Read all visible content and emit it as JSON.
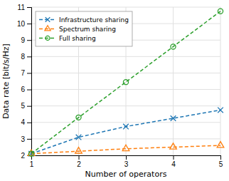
{
  "chart_data": {
    "type": "line",
    "x": [
      1,
      2,
      3,
      4,
      5
    ],
    "series": [
      {
        "name": "Infrastructure sharing",
        "values": [
          2.1,
          3.1,
          3.75,
          4.25,
          4.75
        ],
        "marker": "x",
        "line_style": "dashed"
      },
      {
        "name": "Spectrum sharing",
        "values": [
          2.1,
          2.25,
          2.4,
          2.5,
          2.6
        ],
        "marker": "triangle",
        "line_style": "dashed"
      },
      {
        "name": "Full sharing",
        "values": [
          2.1,
          4.3,
          6.45,
          8.6,
          10.75
        ],
        "marker": "circle",
        "line_style": "dashed"
      }
    ],
    "xlabel": "Number of operators",
    "ylabel": "Data rate [bit/s/Hz]",
    "xlim": [
      1,
      5
    ],
    "ylim": [
      2,
      11
    ],
    "xticks": [
      1,
      2,
      3,
      4,
      5
    ],
    "yticks": [
      2,
      3,
      4,
      5,
      6,
      7,
      8,
      9,
      10,
      11
    ],
    "grid": true,
    "legend": "upper left"
  }
}
